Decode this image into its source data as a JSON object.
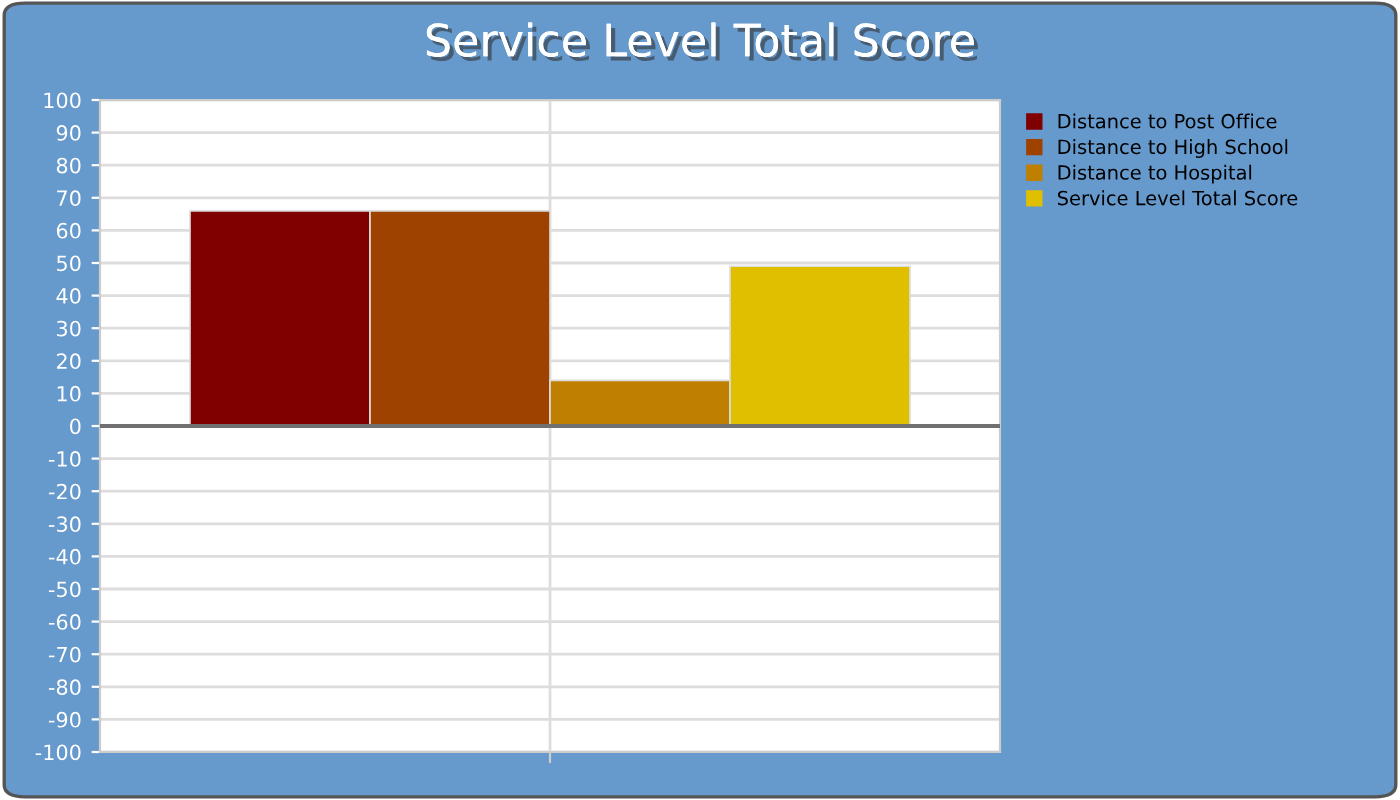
{
  "chart_data": {
    "type": "bar",
    "title": "Service Level Total Score",
    "categories": [
      null
    ],
    "series": [
      {
        "name": "Distance to Post Office",
        "color": "#800000",
        "values": [
          66
        ]
      },
      {
        "name": "Distance to High School",
        "color": "#9e4200",
        "values": [
          66
        ]
      },
      {
        "name": "Distance to Hospital",
        "color": "#bf7f00",
        "values": [
          14
        ]
      },
      {
        "name": "Service Level Total Score",
        "color": "#dfbf00",
        "values": [
          49
        ]
      }
    ],
    "ylim": [
      -100,
      100
    ],
    "yticks": [
      -100,
      -90,
      -80,
      -70,
      -60,
      -50,
      -40,
      -30,
      -20,
      -10,
      0,
      10,
      20,
      30,
      40,
      50,
      60,
      70,
      80,
      90,
      100
    ],
    "grid": true,
    "legend": "top right"
  }
}
